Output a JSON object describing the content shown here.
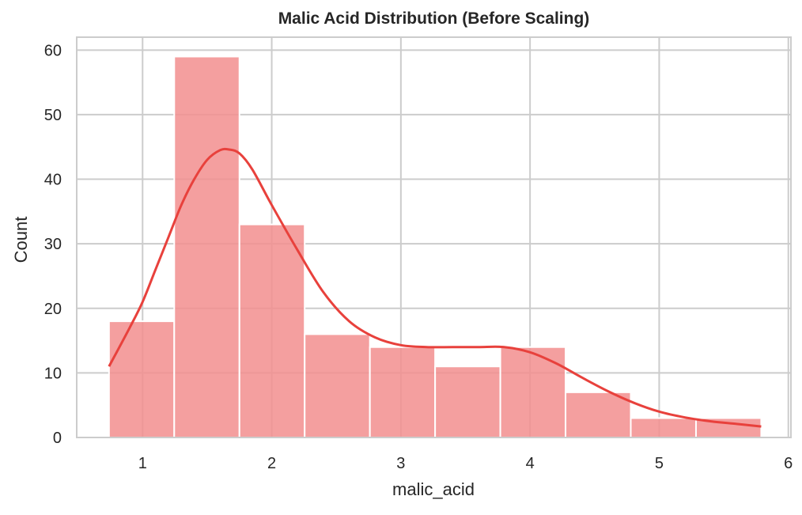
{
  "chart_data": {
    "type": "bar",
    "title": "Malic Acid Distribution (Before Scaling)",
    "xlabel": "malic_acid",
    "ylabel": "Count",
    "xlim": [
      0.49,
      6.02
    ],
    "ylim": [
      0,
      62
    ],
    "xticks": [
      1,
      2,
      3,
      4,
      5,
      6
    ],
    "yticks": [
      0,
      10,
      20,
      30,
      40,
      50,
      60
    ],
    "grid": true,
    "bins": [
      {
        "x0": 0.74,
        "x1": 1.245,
        "count": 18
      },
      {
        "x0": 1.245,
        "x1": 1.75,
        "count": 59
      },
      {
        "x0": 1.75,
        "x1": 2.255,
        "count": 33
      },
      {
        "x0": 2.255,
        "x1": 2.76,
        "count": 16
      },
      {
        "x0": 2.76,
        "x1": 3.265,
        "count": 14
      },
      {
        "x0": 3.265,
        "x1": 3.77,
        "count": 11
      },
      {
        "x0": 3.77,
        "x1": 4.275,
        "count": 14
      },
      {
        "x0": 4.275,
        "x1": 4.78,
        "count": 7
      },
      {
        "x0": 4.78,
        "x1": 5.285,
        "count": 3
      },
      {
        "x0": 5.285,
        "x1": 5.79,
        "count": 3
      }
    ],
    "kde": {
      "x": [
        0.74,
        0.9,
        1.0,
        1.1,
        1.2,
        1.3,
        1.4,
        1.5,
        1.6,
        1.67,
        1.75,
        1.85,
        2.0,
        2.2,
        2.4,
        2.6,
        2.8,
        3.0,
        3.2,
        3.4,
        3.6,
        3.8,
        4.0,
        4.2,
        4.4,
        4.6,
        4.8,
        5.0,
        5.2,
        5.4,
        5.6,
        5.79
      ],
      "y": [
        11,
        17,
        21,
        26,
        31,
        36,
        40,
        43,
        44.5,
        44.6,
        44,
        41.5,
        36,
        29,
        22.5,
        18,
        15.5,
        14.3,
        14,
        14,
        14,
        14,
        13.2,
        11.5,
        9.3,
        7.2,
        5.4,
        4,
        3.1,
        2.5,
        2.1,
        1.7
      ]
    },
    "colors": {
      "bar": "#f28e8e",
      "bar_edge": "#ffffff",
      "kde": "#e8413c",
      "grid": "#cccccc",
      "frame": "#cccccc"
    }
  }
}
